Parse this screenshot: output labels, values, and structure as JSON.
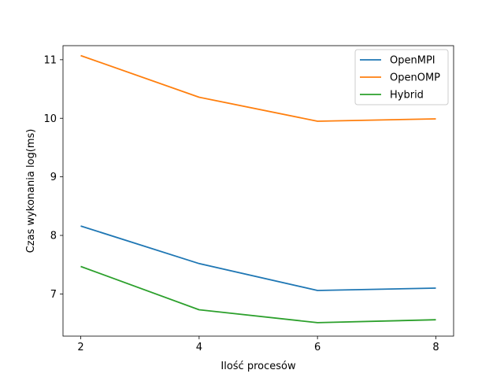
{
  "chart_data": {
    "type": "line",
    "title": "",
    "xlabel": "Ilość procesów",
    "ylabel": "Czas wykonania log(ms)",
    "x": [
      2,
      4,
      6,
      8
    ],
    "xlim": [
      1.7,
      8.3
    ],
    "ylim": [
      6.28,
      11.24
    ],
    "xticks": [
      2,
      4,
      6,
      8
    ],
    "yticks": [
      7,
      8,
      9,
      10,
      11
    ],
    "grid": false,
    "legend_position": "top-right",
    "series": [
      {
        "name": "OpenMPI",
        "color": "#1f77b4",
        "values": [
          8.16,
          7.52,
          7.06,
          7.1
        ]
      },
      {
        "name": "OpenOMP",
        "color": "#ff7f0e",
        "values": [
          11.07,
          10.36,
          9.95,
          9.99
        ]
      },
      {
        "name": "Hybrid",
        "color": "#2ca02c",
        "values": [
          7.47,
          6.73,
          6.51,
          6.56
        ]
      }
    ]
  }
}
